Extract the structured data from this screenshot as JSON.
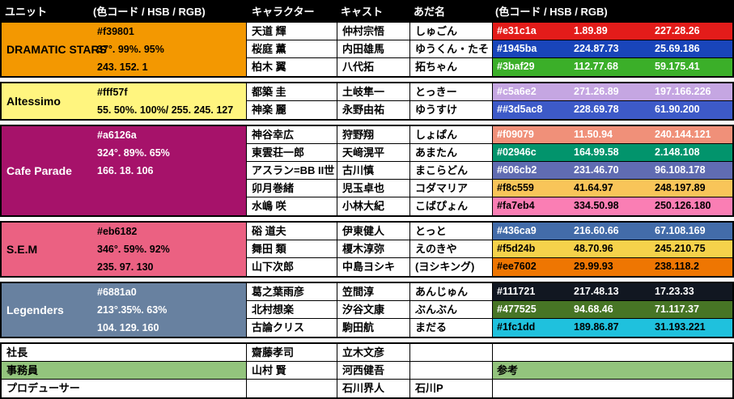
{
  "header": {
    "unit": "ユニット",
    "color_left": "(色コード / HSB / RGB)",
    "character": "キャラクター",
    "cast": "キャスト",
    "nickname": "あだ名",
    "color_right": "(色コード / HSB / RGB)"
  },
  "units": [
    {
      "name": "DRAMATIC STARS",
      "bg": "#f39801",
      "text_color": "#000000",
      "color_lines": [
        "#f39801",
        "37°. 99%. 95%",
        "243. 152. 1"
      ],
      "members": [
        {
          "character": "天道 輝",
          "cast": "仲村宗悟",
          "nickname": "しゅごん",
          "color": {
            "hex": "#e31c1a",
            "hsb": "1.89.89",
            "rgb": "227.28.26",
            "bg": "#e31c1a",
            "fg": "#ffffff"
          }
        },
        {
          "character": "桜庭 薫",
          "cast": "内田雄馬",
          "nickname": "ゆうくん・たそ",
          "color": {
            "hex": "#1945ba",
            "hsb": "224.87.73",
            "rgb": "25.69.186",
            "bg": "#1945ba",
            "fg": "#ffffff"
          }
        },
        {
          "character": "柏木 翼",
          "cast": "八代拓",
          "nickname": "拓ちゃん",
          "color": {
            "hex": "#3baf29",
            "hsb": "112.77.68",
            "rgb": "59.175.41",
            "bg": "#3baf29",
            "fg": "#ffffff"
          }
        }
      ]
    },
    {
      "name": "Altessimo",
      "bg": "#fff57f",
      "text_color": "#000000",
      "color_lines": [
        "#fff57f",
        "55. 50%. 100%/ 255. 245. 127"
      ],
      "members": [
        {
          "character": "都築 圭",
          "cast": "土岐隼一",
          "nickname": "とっきー",
          "color": {
            "hex": "#c5a6e2",
            "hsb": "271.26.89",
            "rgb": "197.166.226",
            "bg": "#c5a6e2",
            "fg": "#ffffff"
          }
        },
        {
          "character": "神楽 麗",
          "cast": "永野由祐",
          "nickname": "ゆうすけ",
          "color": {
            "hex": "##3d5ac8",
            "hsb": "228.69.78",
            "rgb": "61.90.200",
            "bg": "#3d5ac8",
            "fg": "#ffffff"
          }
        }
      ]
    },
    {
      "name": "Cafe Parade",
      "bg": "#a6126a",
      "text_color": "#ffffff",
      "color_lines": [
        "#a6126a",
        "324°. 89%. 65%",
        "166. 18. 106"
      ],
      "members": [
        {
          "character": "神谷幸広",
          "cast": "狩野翔",
          "nickname": "しょぱん",
          "color": {
            "hex": "#f09079",
            "hsb": "11.50.94",
            "rgb": "240.144.121",
            "bg": "#f09079",
            "fg": "#ffffff"
          }
        },
        {
          "character": "東雲荘一郎",
          "cast": "天﨑滉平",
          "nickname": "あまたん",
          "color": {
            "hex": "#02946c",
            "hsb": "164.99.58",
            "rgb": "2.148.108",
            "bg": "#02946c",
            "fg": "#ffffff"
          }
        },
        {
          "character": "アスラン=BB II世",
          "cast": "古川慎",
          "nickname": "まこらどん",
          "color": {
            "hex": "#606cb2",
            "hsb": "231.46.70",
            "rgb": "96.108.178",
            "bg": "#606cb2",
            "fg": "#ffffff"
          }
        },
        {
          "character": "卯月巻緒",
          "cast": "児玉卓也",
          "nickname": "コダマリア",
          "color": {
            "hex": "#f8c559",
            "hsb": "41.64.97",
            "rgb": "248.197.89",
            "bg": "#f8c559",
            "fg": "#000000"
          }
        },
        {
          "character": "水嶋 咲",
          "cast": "小林大紀",
          "nickname": "こばぴょん",
          "color": {
            "hex": "#fa7eb4",
            "hsb": "334.50.98",
            "rgb": "250.126.180",
            "bg": "#fa7eb4",
            "fg": "#000000"
          }
        }
      ]
    },
    {
      "name": "S.E.M",
      "bg": "#eb6182",
      "text_color": "#000000",
      "color_lines": [
        "#eb6182",
        "346°. 59%. 92%",
        "235. 97. 130"
      ],
      "members": [
        {
          "character": "硲 道夫",
          "cast": "伊東健人",
          "nickname": "とっと",
          "color": {
            "hex": "#436ca9",
            "hsb": "216.60.66",
            "rgb": "67.108.169",
            "bg": "#436ca9",
            "fg": "#ffffff"
          }
        },
        {
          "character": "舞田 類",
          "cast": "榎木淳弥",
          "nickname": "えのきや",
          "color": {
            "hex": "#f5d24b",
            "hsb": "48.70.96",
            "rgb": "245.210.75",
            "bg": "#f5d24b",
            "fg": "#000000"
          }
        },
        {
          "character": "山下次郎",
          "cast": "中島ヨシキ",
          "nickname": "(ヨシキング)",
          "color": {
            "hex": "#ee7602",
            "hsb": "29.99.93",
            "rgb": "238.118.2",
            "bg": "#ee7602",
            "fg": "#000000"
          }
        }
      ]
    },
    {
      "name": "Legenders",
      "bg": "#6881a0",
      "text_color": "#ffffff",
      "color_lines": [
        "#6881a0",
        "213°.35%. 63%",
        "104. 129. 160"
      ],
      "members": [
        {
          "character": "葛之葉雨彦",
          "cast": "笠間淳",
          "nickname": "あんじゅん",
          "color": {
            "hex": "#111721",
            "hsb": "217.48.13",
            "rgb": "17.23.33",
            "bg": "#111721",
            "fg": "#ffffff"
          }
        },
        {
          "character": "北村想楽",
          "cast": "汐谷文康",
          "nickname": "ぶんぶん",
          "color": {
            "hex": "#477525",
            "hsb": "94.68.46",
            "rgb": "71.117.37",
            "bg": "#477525",
            "fg": "#ffffff"
          }
        },
        {
          "character": "古論クリス",
          "cast": "駒田航",
          "nickname": "まだる",
          "color": {
            "hex": "#1fc1dd",
            "hsb": "189.86.87",
            "rgb": "31.193.221",
            "bg": "#1fc1dd",
            "fg": "#000000"
          }
        }
      ]
    }
  ],
  "staff": [
    {
      "label": "社長",
      "label_bg": "#ffffff",
      "character": "齋藤孝司",
      "cast": "立木文彦",
      "nickname": "",
      "right_text": "",
      "right_bg": "#ffffff"
    },
    {
      "label": "事務員",
      "label_bg": "#93c47d",
      "character": "山村 賢",
      "cast": "河西健吾",
      "nickname": "",
      "right_text": "参考",
      "right_bg": "#93c47d"
    },
    {
      "label": "プロデューサー",
      "label_bg": "#ffffff",
      "character": "",
      "cast": "石川界人",
      "nickname": "石川P",
      "right_text": "",
      "right_bg": "#ffffff"
    }
  ],
  "colors": {
    "header_bg": "#000000",
    "header_fg": "#ffffff",
    "staff_green": "#93c47d",
    "border": "#000000"
  }
}
